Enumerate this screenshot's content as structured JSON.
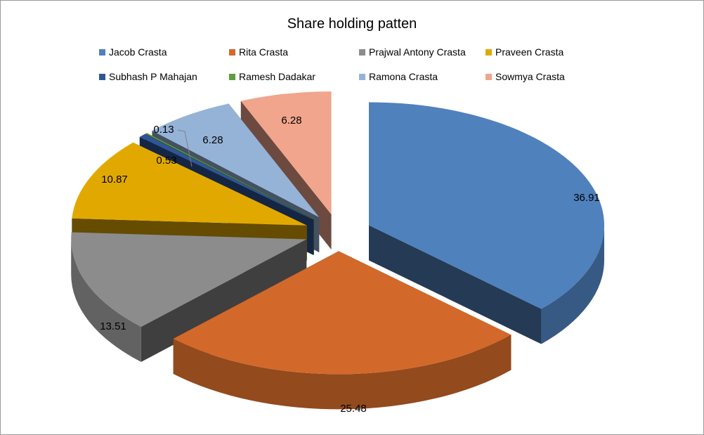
{
  "chart_data": {
    "type": "pie",
    "title": "Share holding patten",
    "legend_position": "top",
    "series": [
      {
        "name": "Jacob Crasta",
        "value": 36.91,
        "label": "36.91",
        "color": "#4F81BD"
      },
      {
        "name": "Rita Crasta",
        "value": 25.48,
        "label": "25.48",
        "color": "#D2692A"
      },
      {
        "name": "Prajwal Antony Crasta",
        "value": 13.51,
        "label": "13.51",
        "color": "#8C8C8C"
      },
      {
        "name": "Praveen Crasta",
        "value": 10.87,
        "label": "10.87",
        "color": "#E1A900"
      },
      {
        "name": "Subhash P Mahajan",
        "value": 0.53,
        "label": "0.53",
        "color": "#2F5597"
      },
      {
        "name": "Ramesh Dadakar",
        "value": 0.13,
        "label": "0.13",
        "color": "#5F9E3C"
      },
      {
        "name": "Ramona Crasta",
        "value": 6.28,
        "label": "6.28",
        "color": "#95B3D7"
      },
      {
        "name": "Sowmya Crasta",
        "value": 6.28,
        "label": "6.28",
        "color": "#F0A58C"
      }
    ]
  }
}
